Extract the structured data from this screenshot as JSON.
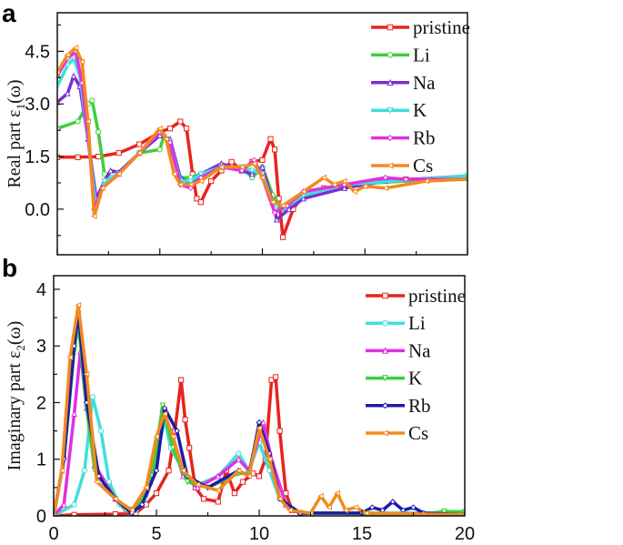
{
  "chart_data": [
    {
      "type": "line",
      "panel_label": "a",
      "ylabel": {
        "main": "Real part ε",
        "sub": "1",
        "tail": "(ω)"
      },
      "xlabel": "",
      "xlim": [
        0,
        20
      ],
      "ylim": [
        -1.3,
        5.6
      ],
      "yticks": [
        "0.0",
        "1.5",
        "3.0",
        "4.5"
      ],
      "ytick_values": [
        0,
        1.5,
        3.0,
        4.5
      ],
      "xticks_labeled": false,
      "legend_position": "top-right",
      "series": [
        {
          "name": "pristine",
          "color": "#e8231b",
          "marker": "square",
          "x": [
            0,
            1,
            2,
            3,
            4,
            5,
            5.5,
            6,
            6.3,
            6.6,
            6.8,
            7,
            7.5,
            8,
            8.5,
            9,
            9.5,
            10,
            10.4,
            10.6,
            10.8,
            11,
            11.5,
            12,
            13,
            15,
            17,
            20
          ],
          "y": [
            1.48,
            1.48,
            1.5,
            1.6,
            1.85,
            2.2,
            2.3,
            2.5,
            2.3,
            1.0,
            0.3,
            0.2,
            0.8,
            1.1,
            1.35,
            1.1,
            1.35,
            1.4,
            2.0,
            1.7,
            0.3,
            -0.8,
            0,
            0.4,
            0.6,
            0.75,
            0.85,
            0.9
          ]
        },
        {
          "name": "Li",
          "color": "#3ccf3c",
          "marker": "circle",
          "x": [
            0,
            1,
            1.5,
            1.7,
            2,
            2.3,
            2.6,
            3,
            4,
            5,
            5.2,
            5.5,
            6,
            6.5,
            7,
            8,
            9,
            9.5,
            10,
            10.5,
            11,
            12,
            14,
            20
          ],
          "y": [
            2.3,
            2.5,
            3.0,
            3.1,
            2.2,
            1.0,
            0.9,
            1.0,
            1.6,
            1.7,
            2.1,
            1.8,
            0.9,
            0.9,
            1.0,
            1.2,
            1.2,
            0.9,
            1.2,
            0.4,
            0.0,
            0.4,
            0.7,
            0.9
          ]
        },
        {
          "name": "Na",
          "color": "#7b2fd0",
          "marker": "triangle-up",
          "x": [
            0,
            0.5,
            0.8,
            1.1,
            1.5,
            1.9,
            2.3,
            2.6,
            3,
            4,
            5,
            5.5,
            6,
            6.5,
            7,
            8,
            9,
            9.5,
            10,
            10.5,
            10.7,
            11.3,
            12,
            14,
            16,
            20
          ],
          "y": [
            3.05,
            3.3,
            3.8,
            3.5,
            2.0,
            0.3,
            0.8,
            1.1,
            1.05,
            1.6,
            2.1,
            2.0,
            0.9,
            0.7,
            1.0,
            1.3,
            1.1,
            1.0,
            1.2,
            0.2,
            -0.3,
            0,
            0.3,
            0.6,
            0.8,
            0.95
          ]
        },
        {
          "name": "K",
          "color": "#40dede",
          "marker": "triangle-down",
          "x": [
            0,
            0.5,
            0.8,
            1.1,
            1.5,
            1.9,
            2.3,
            3,
            4,
            5,
            5.5,
            6,
            6.5,
            7,
            8,
            9,
            9.5,
            10,
            10.6,
            11,
            12,
            14,
            20
          ],
          "y": [
            3.5,
            4.1,
            4.3,
            3.8,
            2.0,
            0.0,
            0.8,
            1.0,
            1.6,
            2.2,
            1.9,
            0.8,
            0.8,
            1.0,
            1.2,
            1.2,
            1.1,
            1.0,
            0.0,
            0.0,
            0.4,
            0.7,
            0.95
          ]
        },
        {
          "name": "Rb",
          "color": "#e030e0",
          "marker": "diamond",
          "x": [
            0,
            0.5,
            0.9,
            1.2,
            1.6,
            1.8,
            2.2,
            3,
            4,
            5,
            5.5,
            6,
            6.5,
            7,
            8,
            9,
            9.6,
            10,
            10.6,
            11.2,
            12,
            14,
            16,
            17,
            20
          ],
          "y": [
            3.8,
            4.3,
            4.5,
            3.6,
            1.5,
            0,
            0.6,
            1.0,
            1.6,
            2.2,
            1.9,
            0.7,
            0.6,
            0.9,
            1.2,
            1.1,
            1.4,
            0.9,
            -0.1,
            0.1,
            0.5,
            0.7,
            0.9,
            0.85,
            0.85
          ]
        },
        {
          "name": "Cs",
          "color": "#f28a1e",
          "marker": "triangle-left",
          "x": [
            0,
            0.5,
            0.9,
            1.2,
            1.5,
            1.8,
            2.2,
            3,
            4,
            5,
            5.3,
            5.7,
            6,
            6.5,
            7,
            8,
            9,
            9.6,
            10,
            10.5,
            11,
            12,
            13,
            13.5,
            14,
            14.5,
            15,
            16,
            18,
            20
          ],
          "y": [
            3.9,
            4.4,
            4.6,
            4.2,
            2.5,
            -0.2,
            0.6,
            1.0,
            1.6,
            2.3,
            2.0,
            1.0,
            0.7,
            0.7,
            0.8,
            1.2,
            1.2,
            1.3,
            0.9,
            0.2,
            0.1,
            0.5,
            0.9,
            0.7,
            0.8,
            0.5,
            0.65,
            0.6,
            0.8,
            0.85
          ]
        }
      ]
    },
    {
      "type": "line",
      "panel_label": "b",
      "ylabel": {
        "main": "Imaginary part ε",
        "sub": "2",
        "tail": "(ω)"
      },
      "xlabel": "",
      "xlim": [
        0,
        20
      ],
      "ylim": [
        0,
        4.24
      ],
      "yticks": [
        "0",
        "1",
        "2",
        "3",
        "4"
      ],
      "ytick_values": [
        0,
        1,
        2,
        3,
        4
      ],
      "xticks": [
        "0",
        "5",
        "10",
        "15",
        "20"
      ],
      "xtick_values": [
        0,
        5,
        10,
        15,
        20
      ],
      "xticks_labeled": true,
      "legend_position": "top-right",
      "series": [
        {
          "name": "pristine",
          "color": "#e8231b",
          "marker": "square",
          "x": [
            0,
            1,
            3,
            4,
            4.5,
            5,
            5.6,
            5.9,
            6.2,
            6.4,
            6.6,
            6.9,
            7.3,
            8,
            8.4,
            8.8,
            9.2,
            9.7,
            10,
            10.3,
            10.6,
            10.8,
            11,
            11.3,
            11.6,
            12,
            20
          ],
          "y": [
            0,
            0.02,
            0.03,
            0.05,
            0.2,
            0.4,
            0.8,
            1.5,
            2.4,
            1.7,
            1.2,
            0.5,
            0.3,
            0.25,
            0.8,
            0.4,
            0.6,
            0.75,
            0.7,
            1.0,
            2.4,
            2.45,
            1.5,
            0.4,
            0.1,
            0.05,
            0.03
          ]
        },
        {
          "name": "Li",
          "color": "#40dede",
          "marker": "circle",
          "x": [
            0,
            1,
            1.5,
            1.9,
            2.3,
            2.7,
            3.2,
            4,
            4.5,
            5,
            5.4,
            5.7,
            6.3,
            7,
            8,
            9,
            9.5,
            10,
            10.5,
            11,
            12,
            20
          ],
          "y": [
            0,
            0.2,
            0.8,
            2.1,
            1.5,
            0.6,
            0.2,
            0.1,
            0.3,
            1.0,
            1.7,
            1.2,
            0.8,
            0.55,
            0.7,
            1.1,
            0.8,
            1.3,
            0.8,
            0.3,
            0.05,
            0.05
          ]
        },
        {
          "name": "Na",
          "color": "#e030e0",
          "marker": "triangle-up",
          "x": [
            0,
            0.5,
            1,
            1.3,
            1.6,
            2,
            2.5,
            3,
            3.5,
            4,
            4.7,
            5.3,
            5.8,
            6.3,
            7,
            8,
            9,
            9.5,
            10.2,
            10.6,
            11.3,
            12,
            20
          ],
          "y": [
            0,
            0.2,
            1.8,
            2.9,
            1.9,
            0.9,
            0.6,
            0.3,
            0.1,
            0.15,
            0.6,
            1.9,
            1.3,
            0.7,
            0.5,
            0.7,
            1.0,
            0.8,
            1.65,
            1.0,
            0.2,
            0.05,
            0.03
          ]
        },
        {
          "name": "K",
          "color": "#3ccf3c",
          "marker": "triangle-down",
          "x": [
            0,
            0.5,
            1,
            1.2,
            1.6,
            2,
            2.6,
            3.5,
            4,
            4.8,
            5.3,
            5.8,
            6.5,
            7.5,
            9,
            9.5,
            10,
            10.5,
            11,
            12,
            18,
            19,
            20
          ],
          "y": [
            0,
            1.0,
            2.9,
            3.4,
            1.9,
            0.8,
            0.5,
            0.1,
            0.1,
            0.7,
            1.95,
            1.2,
            0.6,
            0.5,
            0.75,
            0.75,
            1.6,
            1.0,
            0.3,
            0.05,
            0.03,
            0.08,
            0.07
          ]
        },
        {
          "name": "Rb",
          "color": "#1c1ca8",
          "marker": "diamond",
          "x": [
            0,
            0.5,
            1,
            1.2,
            1.6,
            2.2,
            3,
            3.8,
            4.3,
            5,
            5.4,
            6,
            6.5,
            7.5,
            9,
            9.5,
            10,
            10.5,
            11,
            12,
            15,
            15.5,
            16,
            16.5,
            17,
            17.5,
            18,
            20
          ],
          "y": [
            0,
            1.0,
            3.0,
            3.6,
            2.0,
            0.7,
            0.3,
            0.05,
            0.2,
            0.8,
            1.9,
            1.5,
            0.7,
            0.5,
            0.8,
            0.7,
            1.65,
            1.1,
            0.3,
            0.05,
            0.05,
            0.15,
            0.1,
            0.25,
            0.1,
            0.15,
            0.05,
            0.02
          ]
        },
        {
          "name": "Cs",
          "color": "#f28a1e",
          "marker": "triangle-left",
          "x": [
            0,
            0.4,
            0.8,
            1.2,
            1.6,
            2.1,
            3,
            3.8,
            4.5,
            5,
            5.4,
            5.8,
            6.3,
            7,
            8,
            9,
            9.5,
            10,
            10.5,
            11,
            11.5,
            12.5,
            13,
            13.4,
            13.8,
            14.2,
            14.7,
            15.2,
            20
          ],
          "y": [
            0,
            0.8,
            2.8,
            3.72,
            2.5,
            0.6,
            0.3,
            0.1,
            0.5,
            1.4,
            1.8,
            1.4,
            0.8,
            0.55,
            0.45,
            0.8,
            0.7,
            1.55,
            1.0,
            0.3,
            0.1,
            0.05,
            0.35,
            0.15,
            0.4,
            0.1,
            0.15,
            0.05,
            0.02
          ]
        }
      ]
    }
  ]
}
